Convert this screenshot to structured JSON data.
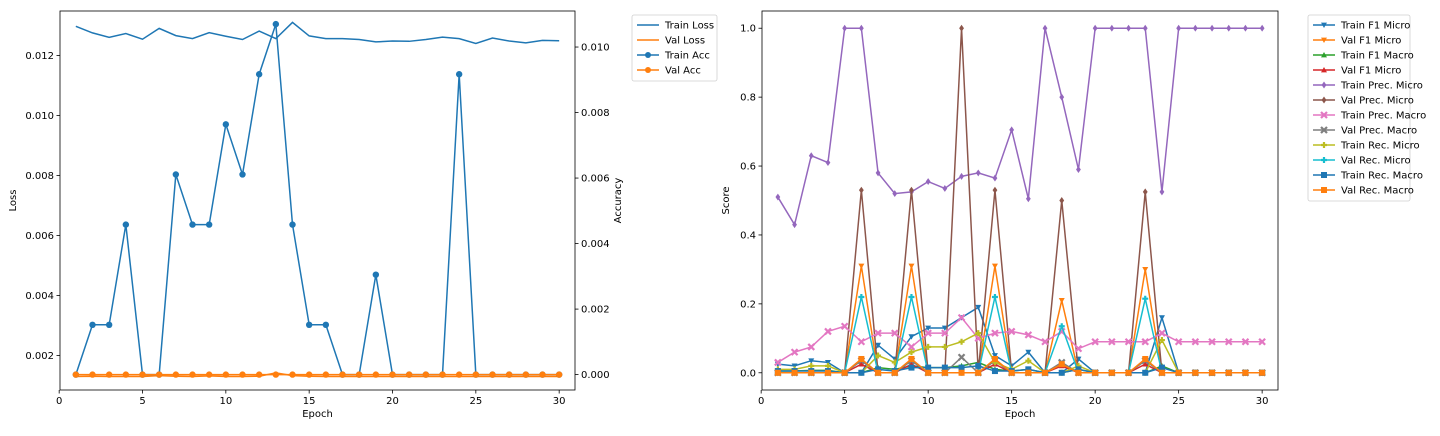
{
  "chart_data": [
    {
      "type": "line",
      "xlabel": "Epoch",
      "ylabel": "Loss",
      "y2label": "Accuracy",
      "xlim": [
        0.05,
        30.95
      ],
      "ylim": [
        0.00085,
        0.01348
      ],
      "y2lim": [
        -0.00047,
        0.0111
      ],
      "xticks": [
        0,
        5,
        10,
        15,
        20,
        25,
        30
      ],
      "yticks": [
        0.002,
        0.004,
        0.006,
        0.008,
        0.01,
        0.012
      ],
      "yticklabels": [
        "0.002",
        "0.004",
        "0.006",
        "0.008",
        "0.010",
        "0.012"
      ],
      "y2ticks": [
        0.0,
        0.002,
        0.004,
        0.006,
        0.008,
        0.01
      ],
      "y2ticklabels": [
        "0.000",
        "0.002",
        "0.004",
        "0.006",
        "0.008",
        "0.010"
      ],
      "legend_position": "outside-right",
      "x": [
        1,
        2,
        3,
        4,
        5,
        6,
        7,
        8,
        9,
        10,
        11,
        12,
        13,
        14,
        15,
        16,
        17,
        18,
        19,
        20,
        21,
        22,
        23,
        24,
        25,
        26,
        27,
        28,
        29,
        30
      ],
      "series": [
        {
          "name": "Train Loss",
          "axis": "left",
          "color": "#1f77b4",
          "marker": "none",
          "values": [
            0.01297,
            0.01275,
            0.0126,
            0.01273,
            0.01254,
            0.0129,
            0.01266,
            0.01256,
            0.01276,
            0.01264,
            0.01253,
            0.01281,
            0.01256,
            0.0131,
            0.01265,
            0.01256,
            0.01256,
            0.01253,
            0.01245,
            0.01248,
            0.01247,
            0.01253,
            0.01261,
            0.01256,
            0.0124,
            0.01258,
            0.01248,
            0.01242,
            0.0125,
            0.01249
          ]
        },
        {
          "name": "Val Loss",
          "axis": "left",
          "color": "#ff7f0e",
          "marker": "none",
          "values": [
            0.0013,
            0.00131,
            0.0013,
            0.0013,
            0.0013,
            0.00133,
            0.00131,
            0.0013,
            0.00132,
            0.0013,
            0.0013,
            0.00131,
            0.00142,
            0.00133,
            0.00131,
            0.0013,
            0.0013,
            0.0013,
            0.0013,
            0.0013,
            0.0013,
            0.0013,
            0.0013,
            0.0013,
            0.0013,
            0.0013,
            0.0013,
            0.0013,
            0.0013,
            0.0013
          ]
        },
        {
          "name": "Train Acc",
          "axis": "right",
          "color": "#1f77b4",
          "marker": "circle",
          "values": [
            0.0,
            0.00152,
            0.00152,
            0.00458,
            0.0,
            0.0,
            0.00611,
            0.00458,
            0.00458,
            0.00764,
            0.00611,
            0.00917,
            0.0107,
            0.00458,
            0.00152,
            0.00152,
            0.0,
            0.0,
            0.00305,
            0.0,
            0.0,
            0.0,
            0.0,
            0.00917,
            0.0,
            0.0,
            0.0,
            0.0,
            0.0,
            0.0
          ]
        },
        {
          "name": "Val Acc",
          "axis": "right",
          "color": "#ff7f0e",
          "marker": "circle",
          "values": [
            0,
            0,
            0,
            0,
            0,
            0,
            0,
            0,
            0,
            0,
            0,
            0,
            0,
            0,
            0,
            0,
            0,
            0,
            0,
            0,
            0,
            0,
            0,
            0,
            0,
            0,
            0,
            0,
            0,
            0
          ]
        }
      ]
    },
    {
      "type": "line",
      "xlabel": "Epoch",
      "ylabel": "Score",
      "xlim": [
        0.05,
        30.95
      ],
      "ylim": [
        -0.05,
        1.05
      ],
      "xticks": [
        0,
        5,
        10,
        15,
        20,
        25,
        30
      ],
      "yticks": [
        0.0,
        0.2,
        0.4,
        0.6,
        0.8,
        1.0
      ],
      "yticklabels": [
        "0.0",
        "0.2",
        "0.4",
        "0.6",
        "0.8",
        "1.0"
      ],
      "legend_position": "outside-right",
      "x": [
        1,
        2,
        3,
        4,
        5,
        6,
        7,
        8,
        9,
        10,
        11,
        12,
        13,
        14,
        15,
        16,
        17,
        18,
        19,
        20,
        21,
        22,
        23,
        24,
        25,
        26,
        27,
        28,
        29,
        30
      ],
      "series": [
        {
          "name": "Train F1 Micro",
          "color": "#1f77b4",
          "marker": "triangle-down",
          "values": [
            0.025,
            0.02,
            0.035,
            0.03,
            0.0,
            0.0,
            0.08,
            0.04,
            0.105,
            0.13,
            0.13,
            0.16,
            0.19,
            0.05,
            0.02,
            0.06,
            0.0,
            0.0,
            0.04,
            0.0,
            0.0,
            0.0,
            0.0,
            0.16,
            0.0,
            0.0,
            0.0,
            0.0,
            0.0,
            0.0
          ]
        },
        {
          "name": "Val F1 Micro",
          "color": "#ff7f0e",
          "marker": "triangle-down",
          "values": [
            0,
            0,
            0,
            0,
            0,
            0.31,
            0,
            0,
            0.31,
            0,
            0,
            0,
            0,
            0.31,
            0,
            0,
            0,
            0.21,
            0,
            0,
            0,
            0,
            0.3,
            0,
            0,
            0,
            0,
            0,
            0,
            0
          ]
        },
        {
          "name": "Train F1 Macro",
          "color": "#2ca02c",
          "marker": "triangle-up",
          "values": [
            0.005,
            0.005,
            0.007,
            0.007,
            0.0,
            0.0,
            0.015,
            0.01,
            0.02,
            0.015,
            0.015,
            0.02,
            0.03,
            0.01,
            0.005,
            0.01,
            0.0,
            0.0,
            0.01,
            0.0,
            0.0,
            0.0,
            0.0,
            0.02,
            0.0,
            0.0,
            0.0,
            0.0,
            0.0,
            0.0
          ]
        },
        {
          "name": "Val F1 Micro",
          "color": "#d62728",
          "marker": "triangle-up",
          "values": [
            0,
            0,
            0,
            0,
            0,
            0.025,
            0,
            0,
            0.025,
            0,
            0,
            0,
            0,
            0.025,
            0,
            0,
            0,
            0.02,
            0,
            0,
            0,
            0,
            0.025,
            0,
            0,
            0,
            0,
            0,
            0,
            0
          ]
        },
        {
          "name": "Train Prec. Micro",
          "color": "#9467bd",
          "marker": "diamond",
          "values": [
            0.51,
            0.43,
            0.63,
            0.61,
            1.0,
            1.0,
            0.58,
            0.52,
            0.525,
            0.555,
            0.535,
            0.57,
            0.58,
            0.565,
            0.705,
            0.505,
            1.0,
            0.8,
            0.59,
            1.0,
            1.0,
            1.0,
            1.0,
            0.525,
            1.0,
            1.0,
            1.0,
            1.0,
            1.0,
            1.0
          ]
        },
        {
          "name": "Val Prec. Micro",
          "color": "#8c564b",
          "marker": "diamond",
          "values": [
            0,
            0,
            0,
            0,
            0,
            0.53,
            0,
            0,
            0.53,
            0,
            0,
            1.0,
            0,
            0.53,
            0,
            0,
            0,
            0.5,
            0,
            0,
            0,
            0,
            0.525,
            0,
            0,
            0,
            0,
            0,
            0,
            0
          ]
        },
        {
          "name": "Train Prec. Macro",
          "color": "#e377c2",
          "marker": "x",
          "values": [
            0.03,
            0.06,
            0.075,
            0.12,
            0.135,
            0.09,
            0.115,
            0.115,
            0.075,
            0.115,
            0.115,
            0.16,
            0.1,
            0.115,
            0.12,
            0.11,
            0.09,
            0.12,
            0.07,
            0.09,
            0.09,
            0.09,
            0.09,
            0.115,
            0.09,
            0.09,
            0.09,
            0.09,
            0.09,
            0.09
          ]
        },
        {
          "name": "Val Prec. Macro",
          "color": "#7f7f7f",
          "marker": "x",
          "values": [
            0,
            0,
            0,
            0,
            0,
            0.035,
            0,
            0,
            0.035,
            0,
            0,
            0.045,
            0,
            0.035,
            0,
            0,
            0,
            0.03,
            0,
            0,
            0,
            0,
            0.035,
            0,
            0,
            0,
            0,
            0,
            0,
            0
          ]
        },
        {
          "name": "Train Rec. Micro",
          "color": "#bcbd22",
          "marker": "plus",
          "values": [
            0.01,
            0.01,
            0.02,
            0.02,
            0.0,
            0.0,
            0.05,
            0.03,
            0.06,
            0.075,
            0.075,
            0.09,
            0.115,
            0.03,
            0.01,
            0.035,
            0.0,
            0.0,
            0.02,
            0.0,
            0.0,
            0.0,
            0.0,
            0.095,
            0.0,
            0.0,
            0.0,
            0.0,
            0.0,
            0.0
          ]
        },
        {
          "name": "Val Rec. Micro",
          "color": "#17becf",
          "marker": "plus",
          "values": [
            0,
            0,
            0,
            0,
            0,
            0.22,
            0,
            0,
            0.22,
            0,
            0,
            0,
            0,
            0.22,
            0,
            0,
            0,
            0.135,
            0,
            0,
            0,
            0,
            0.215,
            0,
            0,
            0,
            0,
            0,
            0,
            0
          ]
        },
        {
          "name": "Train Rec. Macro",
          "color": "#1f77b4",
          "marker": "square",
          "values": [
            0.005,
            0.005,
            0.005,
            0.005,
            0.0,
            0.0,
            0.01,
            0.005,
            0.015,
            0.015,
            0.015,
            0.015,
            0.02,
            0.005,
            0.005,
            0.01,
            0.0,
            0.0,
            0.01,
            0.0,
            0.0,
            0.0,
            0.0,
            0.015,
            0.0,
            0.0,
            0.0,
            0.0,
            0.0,
            0.0
          ]
        },
        {
          "name": "Val Rec. Macro",
          "color": "#ff7f0e",
          "marker": "square",
          "values": [
            0,
            0,
            0,
            0,
            0,
            0.04,
            0,
            0,
            0.04,
            0,
            0,
            0,
            0,
            0.04,
            0,
            0,
            0,
            0.025,
            0,
            0,
            0,
            0,
            0.04,
            0,
            0,
            0,
            0,
            0,
            0,
            0
          ]
        }
      ]
    }
  ]
}
